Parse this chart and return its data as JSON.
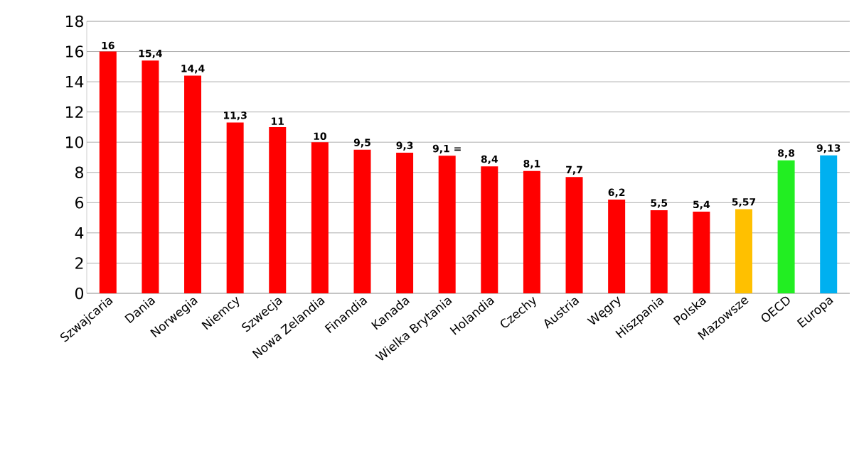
{
  "chart_data": {
    "type": "bar",
    "categories": [
      "Szwajcaria",
      "Dania",
      "Norwegia",
      "Niemcy",
      "Szwecja",
      "Nowa Zelandia",
      "Finandia",
      "Kanada",
      "Wielka Brytania",
      "Holandia",
      "Czechy",
      "Austria",
      "Węgry",
      "Hiszpania",
      "Polska",
      "Mazowsze",
      "OECD",
      "Europa"
    ],
    "values": [
      16,
      15.4,
      14.4,
      11.3,
      11,
      10,
      9.5,
      9.3,
      9.1,
      8.4,
      8.1,
      7.7,
      6.2,
      5.5,
      5.4,
      5.57,
      8.8,
      9.13
    ],
    "colors": [
      "#ff0000",
      "#ff0000",
      "#ff0000",
      "#ff0000",
      "#ff0000",
      "#ff0000",
      "#ff0000",
      "#ff0000",
      "#ff0000",
      "#ff0000",
      "#ff0000",
      "#ff0000",
      "#ff0000",
      "#ff0000",
      "#ff0000",
      "#ffc000",
      "#22ee22",
      "#00b0f0"
    ],
    "value_labels": [
      "16",
      "15,4",
      "14,4",
      "11,3",
      "11",
      "10",
      "9,5",
      "9,3",
      "9,1 =",
      "8,4",
      "8,1",
      "7,7",
      "6,2",
      "5,5",
      "5,4",
      "5,57",
      "8,8",
      "9,13"
    ],
    "ylim": [
      0,
      18
    ],
    "yticks": [
      0,
      2,
      4,
      6,
      8,
      10,
      12,
      14,
      16,
      18
    ],
    "grid": "y"
  }
}
